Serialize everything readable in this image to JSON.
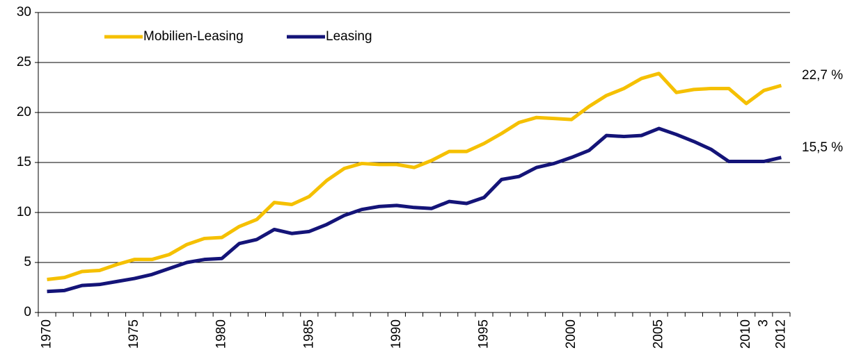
{
  "chart_data": {
    "type": "line",
    "categories": [
      "1970",
      null,
      null,
      null,
      null,
      "1975",
      null,
      null,
      null,
      null,
      "1980",
      null,
      null,
      null,
      null,
      "1985",
      null,
      null,
      null,
      null,
      "1990",
      null,
      null,
      null,
      null,
      "1995",
      null,
      null,
      null,
      null,
      "2000",
      null,
      null,
      null,
      null,
      "2005",
      null,
      null,
      null,
      null,
      "2010",
      "3",
      "2012"
    ],
    "series": [
      {
        "name": "Mobilien-Leasing",
        "color": "#f5c000",
        "values": [
          3.3,
          3.5,
          4.1,
          4.2,
          4.8,
          5.3,
          5.3,
          5.8,
          6.8,
          7.4,
          7.5,
          8.6,
          9.3,
          11.0,
          10.8,
          11.6,
          13.2,
          14.4,
          14.9,
          14.8,
          14.8,
          14.5,
          15.2,
          16.1,
          16.1,
          16.9,
          17.9,
          19.0,
          19.5,
          19.4,
          19.3,
          20.6,
          21.7,
          22.4,
          23.4,
          23.9,
          22.0,
          22.3,
          22.4,
          22.4,
          20.9,
          22.2,
          22.7
        ],
        "value_labels": [
          null,
          null,
          null,
          null,
          null,
          null,
          null,
          null,
          null,
          null,
          null,
          null,
          null,
          null,
          null,
          null,
          null,
          null,
          null,
          null,
          null,
          null,
          null,
          null,
          null,
          null,
          null,
          null,
          null,
          null,
          null,
          null,
          null,
          null,
          null,
          null,
          null,
          null,
          null,
          null,
          null,
          null,
          "22,7 %"
        ]
      },
      {
        "name": "Leasing",
        "color": "#141478",
        "values": [
          2.1,
          2.2,
          2.7,
          2.8,
          3.1,
          3.4,
          3.8,
          4.4,
          5.0,
          5.3,
          5.4,
          6.9,
          7.3,
          8.3,
          7.9,
          8.1,
          8.8,
          9.7,
          10.3,
          10.6,
          10.7,
          10.5,
          10.4,
          11.1,
          10.9,
          11.5,
          13.3,
          13.6,
          14.5,
          14.9,
          15.5,
          16.2,
          17.7,
          17.6,
          17.7,
          18.4,
          17.8,
          17.1,
          16.3,
          15.1,
          15.1,
          15.1,
          15.5
        ],
        "value_labels": [
          null,
          null,
          null,
          null,
          null,
          null,
          null,
          null,
          null,
          null,
          null,
          null,
          null,
          null,
          null,
          null,
          null,
          null,
          null,
          null,
          null,
          null,
          null,
          null,
          null,
          null,
          null,
          null,
          null,
          null,
          null,
          null,
          null,
          null,
          null,
          null,
          null,
          null,
          null,
          null,
          null,
          null,
          "15,5 %"
        ]
      }
    ],
    "ylim": [
      0,
      30
    ],
    "yticks": [
      0,
      5,
      10,
      15,
      20,
      25,
      30
    ],
    "grid": true,
    "legend": "top-left"
  }
}
